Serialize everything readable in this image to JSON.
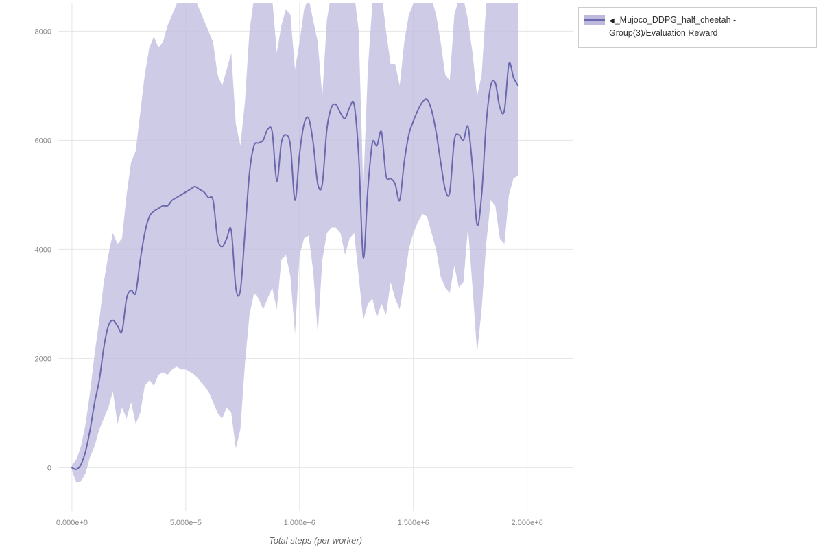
{
  "legend": {
    "collapse_icon": "◀",
    "label": "_Mujoco_DDPG_half_cheetah - Group(3)/Evaluation Reward"
  },
  "chart_data": {
    "type": "line",
    "title": "",
    "xlabel": "Total steps (per worker)",
    "ylabel": "",
    "xlim": [
      -60000,
      2200000
    ],
    "ylim": [
      -800,
      8520
    ],
    "grid": true,
    "legend_position": "top-right",
    "xticks": [
      {
        "value": 0,
        "label": "0.000e+0"
      },
      {
        "value": 500000,
        "label": "5.000e+5"
      },
      {
        "value": 1000000,
        "label": "1.000e+6"
      },
      {
        "value": 1500000,
        "label": "1.500e+6"
      },
      {
        "value": 2000000,
        "label": "2.000e+6"
      }
    ],
    "yticks": [
      {
        "value": 0,
        "label": "0"
      },
      {
        "value": 2000,
        "label": "2000"
      },
      {
        "value": 4000,
        "label": "4000"
      },
      {
        "value": 6000,
        "label": "6000"
      },
      {
        "value": 8000,
        "label": "8000"
      }
    ],
    "series": [
      {
        "name": "_Mujoco_DDPG_half_cheetah - Group(3)/Evaluation Reward",
        "color": "#6b68ad",
        "band_color": "#bdb9dd",
        "band_opacity": 0.75,
        "x_start": 0,
        "x_step": 20000,
        "mean": [
          0,
          -30,
          60,
          300,
          700,
          1200,
          1600,
          2200,
          2600,
          2700,
          2600,
          2500,
          3100,
          3250,
          3200,
          3800,
          4300,
          4600,
          4700,
          4750,
          4800,
          4800,
          4900,
          4950,
          5000,
          5050,
          5100,
          5150,
          5100,
          5050,
          4950,
          4900,
          4200,
          4050,
          4200,
          4350,
          3300,
          3250,
          4300,
          5400,
          5900,
          5950,
          6000,
          6200,
          6150,
          5250,
          5950,
          6100,
          5900,
          4900,
          5750,
          6300,
          6400,
          5950,
          5200,
          5200,
          6200,
          6600,
          6650,
          6500,
          6400,
          6600,
          6650,
          5700,
          3850,
          5100,
          5950,
          5900,
          6150,
          5350,
          5300,
          5200,
          4900,
          5600,
          6100,
          6350,
          6550,
          6700,
          6750,
          6550,
          6150,
          5600,
          5100,
          5050,
          6000,
          6100,
          6000,
          6250,
          5500,
          4450,
          5000,
          6300,
          7000,
          7050,
          6600,
          6550,
          7400,
          7150,
          7000
        ],
        "lower": [
          -50,
          -280,
          -250,
          -100,
          200,
          400,
          700,
          900,
          1100,
          1400,
          800,
          1100,
          900,
          1200,
          800,
          1000,
          1500,
          1600,
          1500,
          1700,
          1750,
          1700,
          1800,
          1850,
          1800,
          1800,
          1750,
          1700,
          1600,
          1500,
          1400,
          1200,
          1000,
          900,
          1100,
          1000,
          350,
          700,
          1900,
          2800,
          3200,
          3100,
          2900,
          3100,
          3300,
          2900,
          3800,
          3900,
          3500,
          2450,
          3900,
          4200,
          4250,
          3600,
          2450,
          3800,
          4300,
          4400,
          4400,
          4300,
          3900,
          4200,
          4300,
          3500,
          2700,
          3000,
          3100,
          2750,
          3000,
          2800,
          3400,
          3100,
          2900,
          3400,
          4000,
          4300,
          4500,
          4650,
          4600,
          4300,
          4000,
          3500,
          3300,
          3200,
          3700,
          3300,
          3400,
          4400,
          3300,
          2100,
          2900,
          4100,
          4900,
          4800,
          4200,
          4100,
          5000,
          5300,
          5350
        ],
        "upper": [
          50,
          150,
          400,
          800,
          1400,
          2100,
          2700,
          3400,
          3900,
          4300,
          4100,
          4200,
          5000,
          5600,
          5800,
          6500,
          7200,
          7700,
          7900,
          7700,
          7800,
          8100,
          8300,
          8500,
          8600,
          8600,
          8600,
          8600,
          8400,
          8200,
          8000,
          7800,
          7200,
          7000,
          7300,
          7600,
          6300,
          5900,
          6700,
          8000,
          8600,
          8700,
          8700,
          8700,
          8600,
          7600,
          8100,
          8400,
          8300,
          7300,
          7800,
          8400,
          8600,
          8200,
          7800,
          6800,
          8200,
          8700,
          8700,
          8600,
          8600,
          8700,
          8700,
          8000,
          5100,
          7300,
          8500,
          8600,
          8700,
          8000,
          7400,
          7400,
          7000,
          7800,
          8300,
          8500,
          8600,
          8700,
          8700,
          8600,
          8300,
          7800,
          7200,
          7100,
          8300,
          8600,
          8600,
          8200,
          7600,
          6800,
          7200,
          8500,
          8700,
          8700,
          8600,
          8600,
          8700,
          8600,
          8500
        ]
      }
    ]
  }
}
